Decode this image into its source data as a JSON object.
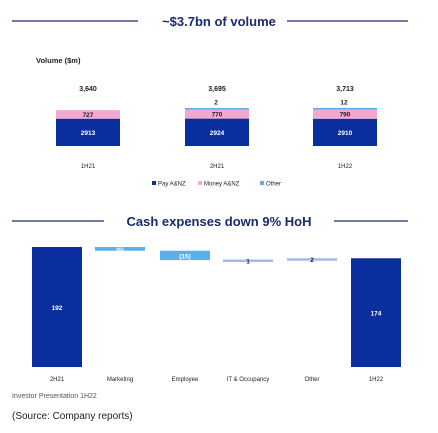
{
  "chart_data": [
    {
      "type": "bar",
      "stacked": true,
      "title": "~$3.7bn of volume",
      "ylabel": "Volume ($m)",
      "categories": [
        "1H21",
        "2H21",
        "1H22"
      ],
      "totals": [
        "3,640",
        "3,695",
        "3,713"
      ],
      "series": [
        {
          "name": "Pay A&NZ",
          "values": [
            2913,
            2924,
            2910
          ],
          "labels": [
            "2913",
            "2924",
            "2910"
          ],
          "color": "#0b2e9e",
          "text_color": "#ffffff"
        },
        {
          "name": "Money A&NZ",
          "values": [
            727,
            770,
            790
          ],
          "labels": [
            "727",
            "770",
            "790"
          ],
          "color": "#f4a7cf",
          "text_color": "#222222"
        },
        {
          "name": "Other",
          "values": [
            0,
            2,
            12
          ],
          "labels": [
            "",
            "2",
            "12"
          ],
          "color": "#5ab0ee",
          "text_color": "#222222"
        }
      ],
      "legend": "bottom"
    },
    {
      "type": "waterfall",
      "title": "Cash expenses down 9% HoH",
      "categories": [
        "2H21",
        "Marketing",
        "Employee",
        "IT & Occupancy",
        "Other",
        "1H22"
      ],
      "values": [
        192,
        -6,
        -15,
        1,
        2,
        174
      ],
      "labels": [
        "192",
        "(6)",
        "(15)",
        "1",
        "2",
        "174"
      ],
      "kinds": [
        "total",
        "delta",
        "delta",
        "delta",
        "delta",
        "total"
      ]
    }
  ],
  "footer": {
    "presentation": "Investor Presentation 1H22",
    "source": "(Source: Company reports)"
  },
  "colors": {
    "title": "#1a2a6c",
    "rule": "#1a2a6c",
    "total_bar": "#0b2e9e",
    "waterfall_down": "#5ab0ee",
    "waterfall_up": "#a7b7f0"
  }
}
